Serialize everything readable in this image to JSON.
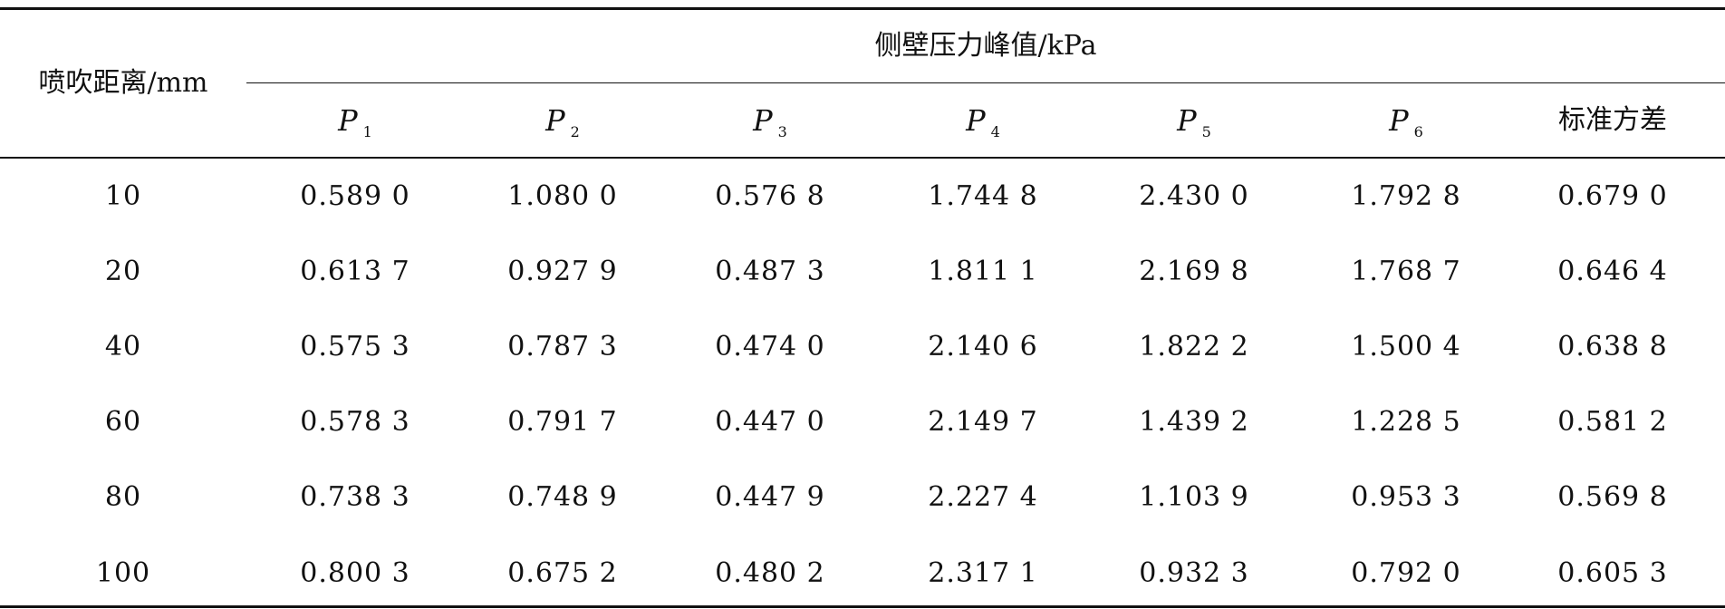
{
  "table": {
    "stub_header": "喷吹距离/mm",
    "group_header": "侧壁压力峰值/kPa",
    "columns": [
      {
        "label": "P",
        "sub": "1"
      },
      {
        "label": "P",
        "sub": "2"
      },
      {
        "label": "P",
        "sub": "3"
      },
      {
        "label": "P",
        "sub": "4"
      },
      {
        "label": "P",
        "sub": "5"
      },
      {
        "label": "P",
        "sub": "6"
      },
      {
        "label": "标准方差",
        "sub": ""
      }
    ],
    "rows": [
      {
        "distance": "10",
        "values": [
          "0.589 0",
          "1.080 0",
          "0.576 8",
          "1.744 8",
          "2.430 0",
          "1.792 8",
          "0.679 0"
        ]
      },
      {
        "distance": "20",
        "values": [
          "0.613 7",
          "0.927 9",
          "0.487 3",
          "1.811 1",
          "2.169 8",
          "1.768 7",
          "0.646 4"
        ]
      },
      {
        "distance": "40",
        "values": [
          "0.575 3",
          "0.787 3",
          "0.474 0",
          "2.140 6",
          "1.822 2",
          "1.500 4",
          "0.638 8"
        ]
      },
      {
        "distance": "60",
        "values": [
          "0.578 3",
          "0.791 7",
          "0.447 0",
          "2.149 7",
          "1.439 2",
          "1.228 5",
          "0.581 2"
        ]
      },
      {
        "distance": "80",
        "values": [
          "0.738 3",
          "0.748 9",
          "0.447 9",
          "2.227 4",
          "1.103 9",
          "0.953 3",
          "0.569 8"
        ]
      },
      {
        "distance": "100",
        "values": [
          "0.800 3",
          "0.675 2",
          "0.480 2",
          "2.317 1",
          "0.932 3",
          "0.792 0",
          "0.605 3"
        ]
      }
    ]
  }
}
